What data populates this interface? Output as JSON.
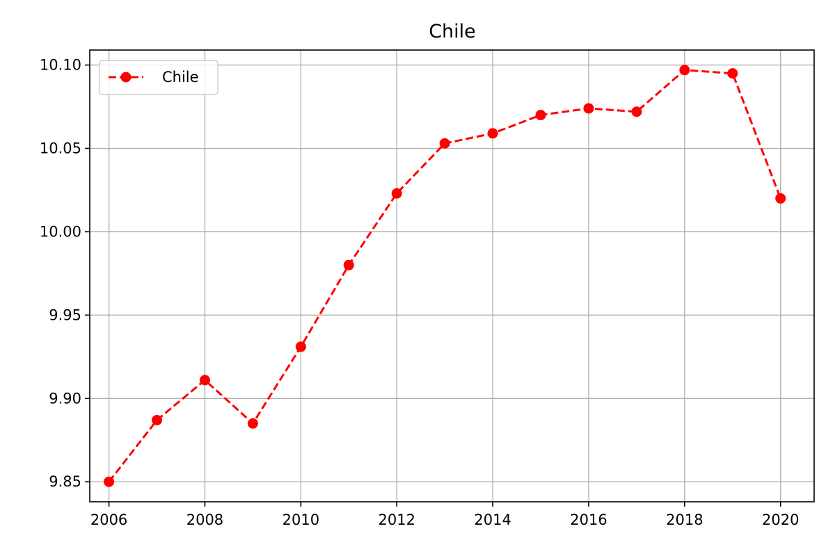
{
  "chart_data": {
    "type": "line",
    "title": "Chile",
    "xlabel": "",
    "ylabel": "",
    "x": [
      2006,
      2007,
      2008,
      2009,
      2010,
      2011,
      2012,
      2013,
      2014,
      2015,
      2016,
      2017,
      2018,
      2019,
      2020
    ],
    "series": [
      {
        "name": "Chile",
        "color": "#ff0000",
        "line_style": "dashed",
        "marker": "circle",
        "values": [
          9.85,
          9.887,
          9.911,
          9.885,
          9.931,
          9.98,
          10.023,
          10.053,
          10.059,
          10.07,
          10.074,
          10.072,
          10.097,
          10.095,
          10.02
        ]
      }
    ],
    "xlim": [
      2005.6,
      2020.7
    ],
    "ylim": [
      9.838,
      10.109
    ],
    "xticks": [
      2006,
      2008,
      2010,
      2012,
      2014,
      2016,
      2018,
      2020
    ],
    "xtick_labels": [
      "2006",
      "2008",
      "2010",
      "2012",
      "2014",
      "2016",
      "2018",
      "2020"
    ],
    "yticks": [
      9.85,
      9.9,
      9.95,
      10.0,
      10.05,
      10.1
    ],
    "ytick_labels": [
      "9.85",
      "9.90",
      "9.95",
      "10.00",
      "10.05",
      "10.10"
    ],
    "grid": true,
    "legend_position": "top-left"
  }
}
